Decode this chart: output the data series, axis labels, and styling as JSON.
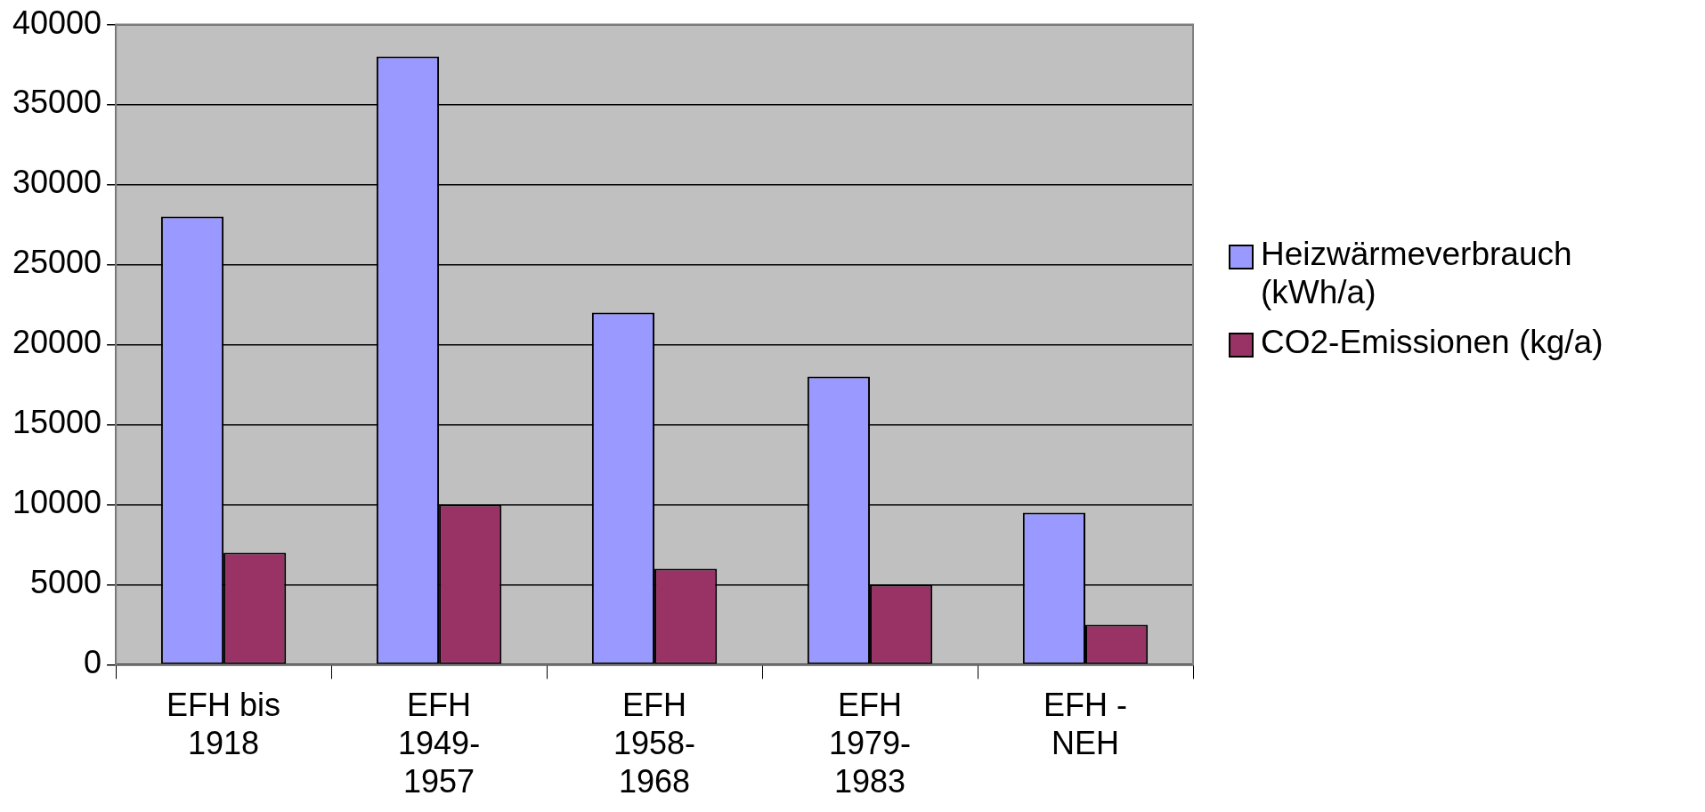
{
  "chart_data": {
    "type": "bar",
    "categories": [
      "EFH bis 1918",
      "EFH 1949-1957",
      "EFH 1958-1968",
      "EFH 1979-1983",
      "EFH - NEH"
    ],
    "series": [
      {
        "name": "Heizwärmeverbrauch (kWh/a)",
        "color": "#9999ff",
        "values": [
          28000,
          38000,
          22000,
          18000,
          9500
        ]
      },
      {
        "name": "CO2-Emissionen (kg/a)",
        "color": "#993366",
        "values": [
          7000,
          10000,
          6000,
          5000,
          2500
        ]
      }
    ],
    "ylim": [
      0,
      40000
    ],
    "yticks": [
      0,
      5000,
      10000,
      15000,
      20000,
      25000,
      30000,
      35000,
      40000
    ],
    "grid": "y",
    "legend": "right"
  }
}
